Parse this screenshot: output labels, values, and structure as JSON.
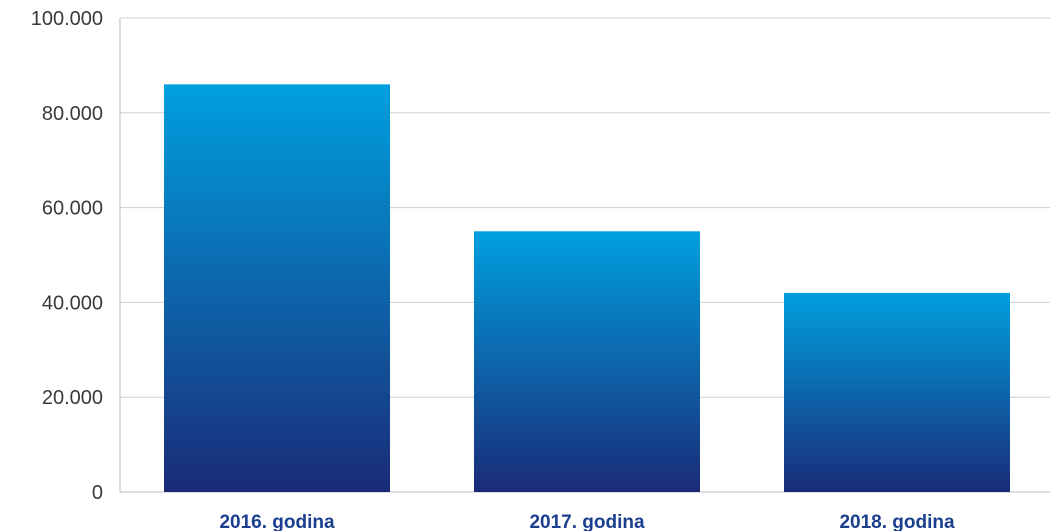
{
  "chart_data": {
    "type": "bar",
    "categories": [
      "2016. godina",
      "2017. godina",
      "2018. godina"
    ],
    "series": [
      {
        "values": [
          86000,
          55000,
          42000
        ]
      }
    ],
    "yticks": [
      "0",
      "20.000",
      "40.000",
      "60.000",
      "80.000",
      "100.000"
    ],
    "ytick_values": [
      0,
      20000,
      40000,
      60000,
      80000,
      100000
    ],
    "ylim": [
      0,
      100000
    ],
    "grid": true,
    "legend": "none",
    "title": "",
    "xlabel": "",
    "ylabel": ""
  },
  "colors": {
    "bar_top": "#00a0df",
    "bar_bottom": "#1a2b78",
    "category_label": "#1b3f8f"
  }
}
